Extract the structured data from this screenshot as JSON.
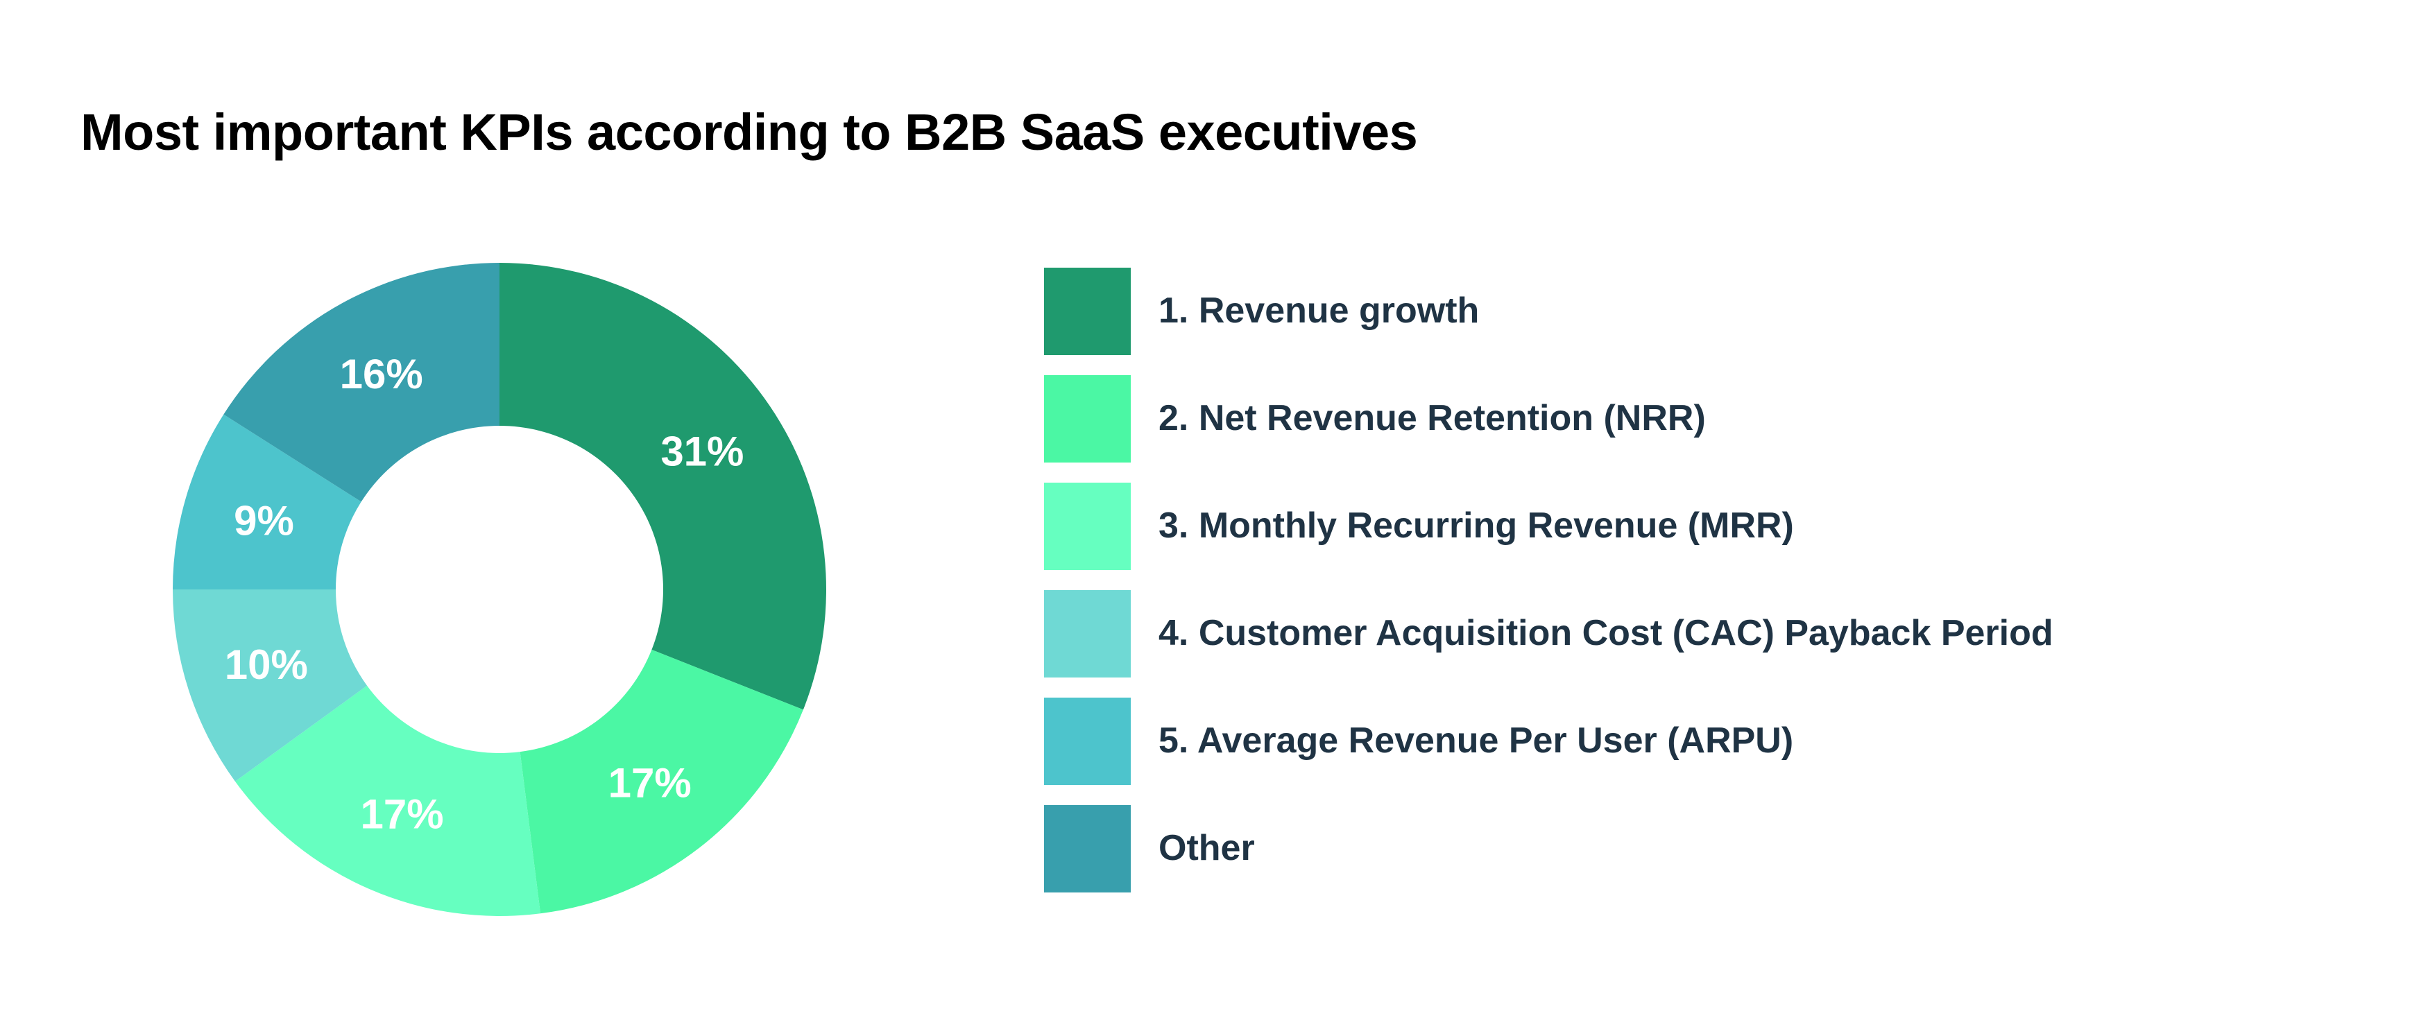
{
  "chart_data": {
    "type": "pie",
    "donut": true,
    "title": "Most important KPIs according to B2B SaaS executives",
    "categories": [
      "1. Revenue growth",
      "2. Net Revenue Retention (NRR)",
      "3. Monthly Recurring Revenue (MRR)",
      "4. Customer Acquisition Cost (CAC) Payback Period",
      "5. Average Revenue Per User (ARPU)",
      "Other"
    ],
    "values": [
      31,
      17,
      17,
      10,
      9,
      16
    ],
    "data_labels": [
      "31%",
      "17%",
      "17%",
      "10%",
      "9%",
      "16%"
    ],
    "colors": [
      "#1f9a6e",
      "#4bf7a4",
      "#66ffc0",
      "#6fd9d4",
      "#4dc4cc",
      "#389fad"
    ],
    "start": "top",
    "direction": "clockwise",
    "legend_placement": "right"
  }
}
